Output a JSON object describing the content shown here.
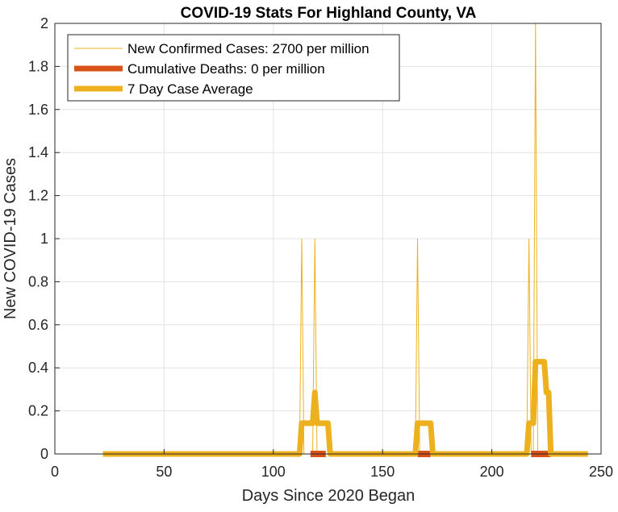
{
  "chart_data": {
    "type": "line",
    "title": "COVID-19 Stats For Highland County, VA",
    "xlabel": "Days Since 2020 Began",
    "ylabel": "New COVID-19 Cases",
    "xlim": [
      0,
      250
    ],
    "ylim": [
      0,
      2
    ],
    "xticks": [
      0,
      50,
      100,
      150,
      200,
      250
    ],
    "yticks": [
      0,
      0.2,
      0.4,
      0.6,
      0.8,
      1,
      1.2,
      1.4,
      1.6,
      1.8,
      2
    ],
    "xtick_labels": [
      "0",
      "50",
      "100",
      "150",
      "200",
      "250"
    ],
    "ytick_labels": [
      "0",
      "0.2",
      "0.4",
      "0.6",
      "0.8",
      "1",
      "1.2",
      "1.4",
      "1.6",
      "1.8",
      "2"
    ],
    "grid": true,
    "legend_position": "top-left",
    "series": [
      {
        "name": "New Confirmed Cases: 2700 per million",
        "color": "#EDB120",
        "style": "thin",
        "x": [
          22,
          112,
          113,
          114,
          118,
          119,
          120,
          165,
          166,
          167,
          216,
          217,
          218,
          219,
          220,
          221,
          244
        ],
        "y": [
          0,
          0,
          1,
          0,
          0,
          1,
          0,
          0,
          1,
          0,
          0,
          1,
          0,
          0,
          2,
          0,
          0
        ]
      },
      {
        "name": "Cumulative Deaths: 0 per million",
        "color": "#D95319",
        "style": "thick",
        "x": [
          117,
          124,
          166,
          172,
          218,
          227
        ],
        "y": [
          0,
          0,
          null,
          0,
          0,
          null
        ],
        "segments": [
          [
            117,
            124
          ],
          [
            166,
            172
          ],
          [
            218,
            227
          ]
        ]
      },
      {
        "name": "7 Day Case Average",
        "color": "#EDB120",
        "style": "thick",
        "x": [
          22,
          112,
          113,
          118,
          119,
          120,
          125,
          126,
          165,
          166,
          172,
          173,
          216,
          217,
          218,
          219,
          220,
          224,
          225,
          226,
          227,
          244
        ],
        "y": [
          0,
          0,
          0.1429,
          0.1429,
          0.2857,
          0.1429,
          0.1429,
          0,
          0,
          0.1429,
          0.1429,
          0,
          0,
          0.1429,
          0.1429,
          0.1429,
          0.4286,
          0.4286,
          0.2857,
          0.2857,
          0,
          0
        ]
      }
    ]
  }
}
